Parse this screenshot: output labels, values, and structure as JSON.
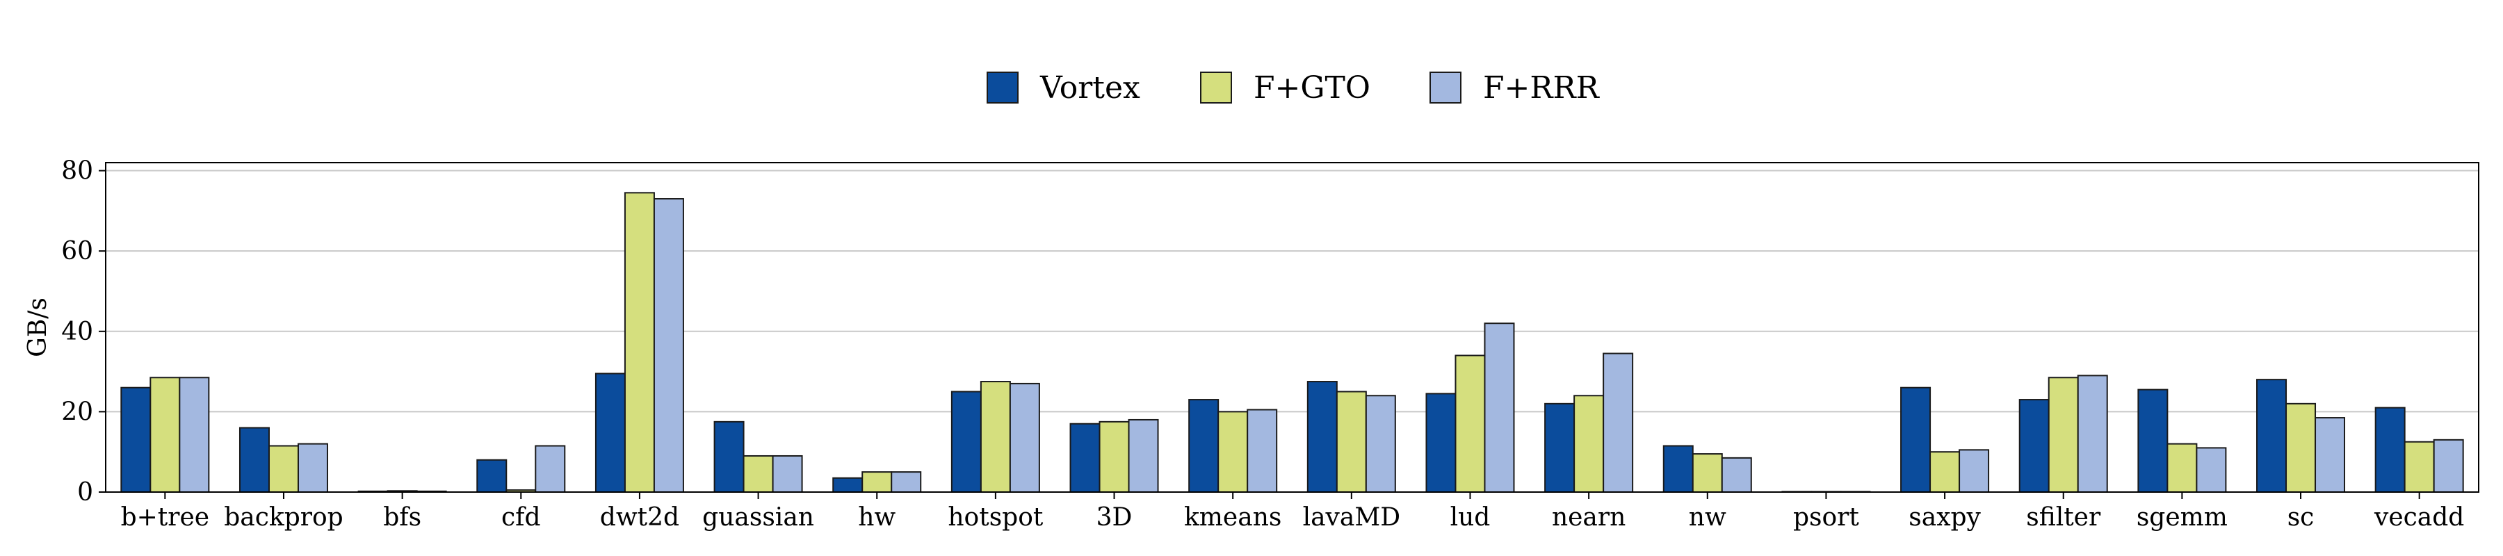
{
  "chart_data": {
    "type": "bar",
    "ylabel": "GB/s",
    "ylim": [
      0,
      82
    ],
    "yticks": [
      0,
      20,
      40,
      60,
      80
    ],
    "grid": "horizontal",
    "legend_position": "top-center",
    "categories": [
      "b+tree",
      "backprop",
      "bfs",
      "cfd",
      "dwt2d",
      "guassian",
      "hw",
      "hotspot",
      "3D",
      "kmeans",
      "lavaMD",
      "lud",
      "nearn",
      "nw",
      "psort",
      "saxpy",
      "sfilter",
      "sgemm",
      "sc",
      "vecadd"
    ],
    "series": [
      {
        "name": "Vortex",
        "color": "#0b4c9c",
        "values": [
          26,
          16,
          0.2,
          8,
          29.5,
          17.5,
          3.5,
          25,
          17,
          23,
          27.5,
          24.5,
          22,
          11.5,
          0.1,
          26,
          23,
          25.5,
          28,
          21
        ]
      },
      {
        "name": "F+GTO",
        "color": "#d5df7e",
        "values": [
          28.5,
          11.5,
          0.3,
          0.5,
          74.5,
          9,
          5,
          27.5,
          17.5,
          20,
          25,
          34,
          24,
          9.5,
          0.1,
          10,
          28.5,
          12,
          22,
          12.5
        ]
      },
      {
        "name": "F+RRR",
        "color": "#a3b8e0",
        "values": [
          28.5,
          12,
          0.2,
          11.5,
          73,
          9,
          5,
          27,
          18,
          20.5,
          24,
          42,
          34.5,
          8.5,
          0.1,
          10.5,
          29,
          11,
          18.5,
          13
        ]
      }
    ]
  }
}
